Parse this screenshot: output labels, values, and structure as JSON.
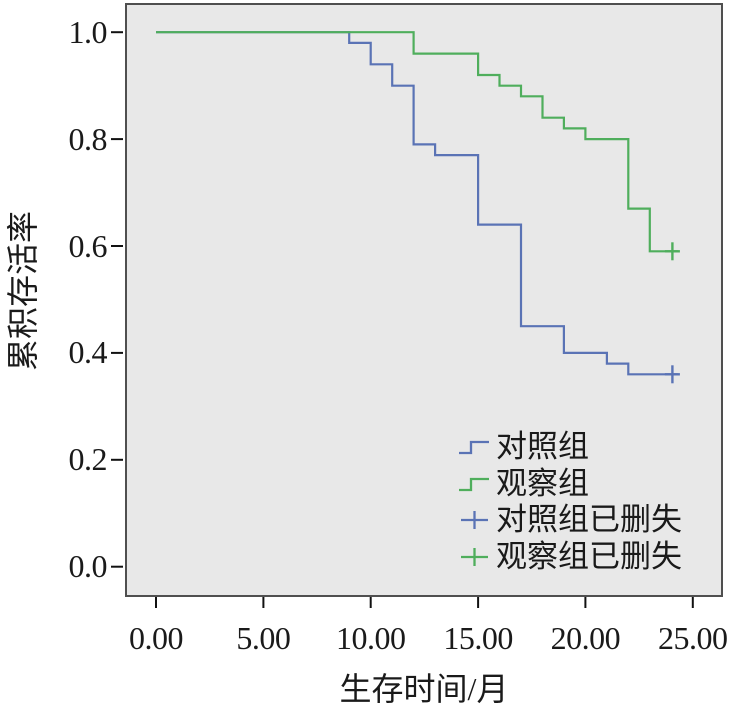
{
  "chart_data": {
    "type": "line",
    "subtype": "kaplan-meier-step-survival",
    "title": "",
    "xlabel": "生存时间/月",
    "ylabel": "累积存活率",
    "xlim": [
      0,
      25
    ],
    "ylim": [
      0.0,
      1.0
    ],
    "grid": false,
    "plot_background": "#e8e8e8",
    "x_ticks": [
      {
        "value": 0,
        "label": "0.00"
      },
      {
        "value": 5,
        "label": "5.00"
      },
      {
        "value": 10,
        "label": "10.00"
      },
      {
        "value": 15,
        "label": "15.00"
      },
      {
        "value": 20,
        "label": "20.00"
      },
      {
        "value": 25,
        "label": "25.00"
      }
    ],
    "y_ticks": [
      {
        "value": 0.0,
        "label": "0.0"
      },
      {
        "value": 0.2,
        "label": "0.2"
      },
      {
        "value": 0.4,
        "label": "0.4"
      },
      {
        "value": 0.6,
        "label": "0.6"
      },
      {
        "value": 0.8,
        "label": "0.8"
      },
      {
        "value": 1.0,
        "label": "1.0"
      }
    ],
    "series": [
      {
        "name": "对照组",
        "color": "#5a73b5",
        "start": [
          0,
          1.0
        ],
        "events": [
          [
            9,
            0.98
          ],
          [
            10,
            0.94
          ],
          [
            11,
            0.9
          ],
          [
            12,
            0.79
          ],
          [
            13,
            0.77
          ],
          [
            15,
            0.64
          ],
          [
            17,
            0.45
          ],
          [
            19,
            0.4
          ],
          [
            21,
            0.38
          ],
          [
            22,
            0.36
          ]
        ],
        "censored": [
          [
            24.05,
            0.36
          ]
        ],
        "line_end": 24.3
      },
      {
        "name": "观察组",
        "color": "#4fae5c",
        "start": [
          0,
          1.0
        ],
        "events": [
          [
            12,
            0.96
          ],
          [
            15,
            0.92
          ],
          [
            16,
            0.9
          ],
          [
            17,
            0.88
          ],
          [
            18,
            0.84
          ],
          [
            19,
            0.82
          ],
          [
            20,
            0.8
          ],
          [
            22,
            0.67
          ],
          [
            23,
            0.59
          ]
        ],
        "censored": [
          [
            24.05,
            0.59
          ]
        ],
        "line_end": 24.3
      }
    ],
    "legend_position": "inside-bottom-right",
    "legend": [
      {
        "label": "对照组",
        "symbol": "step",
        "color": "#5a73b5"
      },
      {
        "label": "观察组",
        "symbol": "step",
        "color": "#4fae5c"
      },
      {
        "label": "对照组已删失",
        "symbol": "plus",
        "color": "#5a73b5"
      },
      {
        "label": "观察组已删失",
        "symbol": "plus",
        "color": "#4fae5c"
      }
    ]
  },
  "colors": {
    "plot_background": "#e8e8e8",
    "plot_border": "#4f4f4f",
    "text": "#1a1a1a",
    "tick": "#111111",
    "control_group": "#5a73b5",
    "observation_group": "#4fae5c"
  }
}
